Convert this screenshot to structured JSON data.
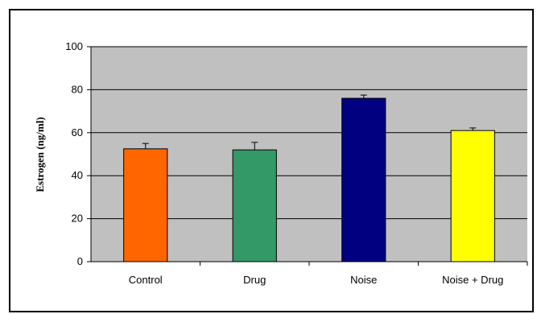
{
  "chart_data": {
    "type": "bar",
    "title": "",
    "xlabel": "",
    "ylabel": "Estrogen  (ng/ml)",
    "ylim": [
      0,
      100
    ],
    "yticks": [
      0,
      20,
      40,
      60,
      80,
      100
    ],
    "categories": [
      "Control",
      "Drug",
      "Noise",
      "Noise + Drug"
    ],
    "values": [
      52.5,
      52,
      76,
      61
    ],
    "errors": [
      2.5,
      3.5,
      1.5,
      1.2
    ],
    "bar_colors": [
      "#ff6600",
      "#339966",
      "#000080",
      "#ffff00"
    ],
    "plot_background": "#c0c0c0",
    "grid": true,
    "legend": "none"
  }
}
